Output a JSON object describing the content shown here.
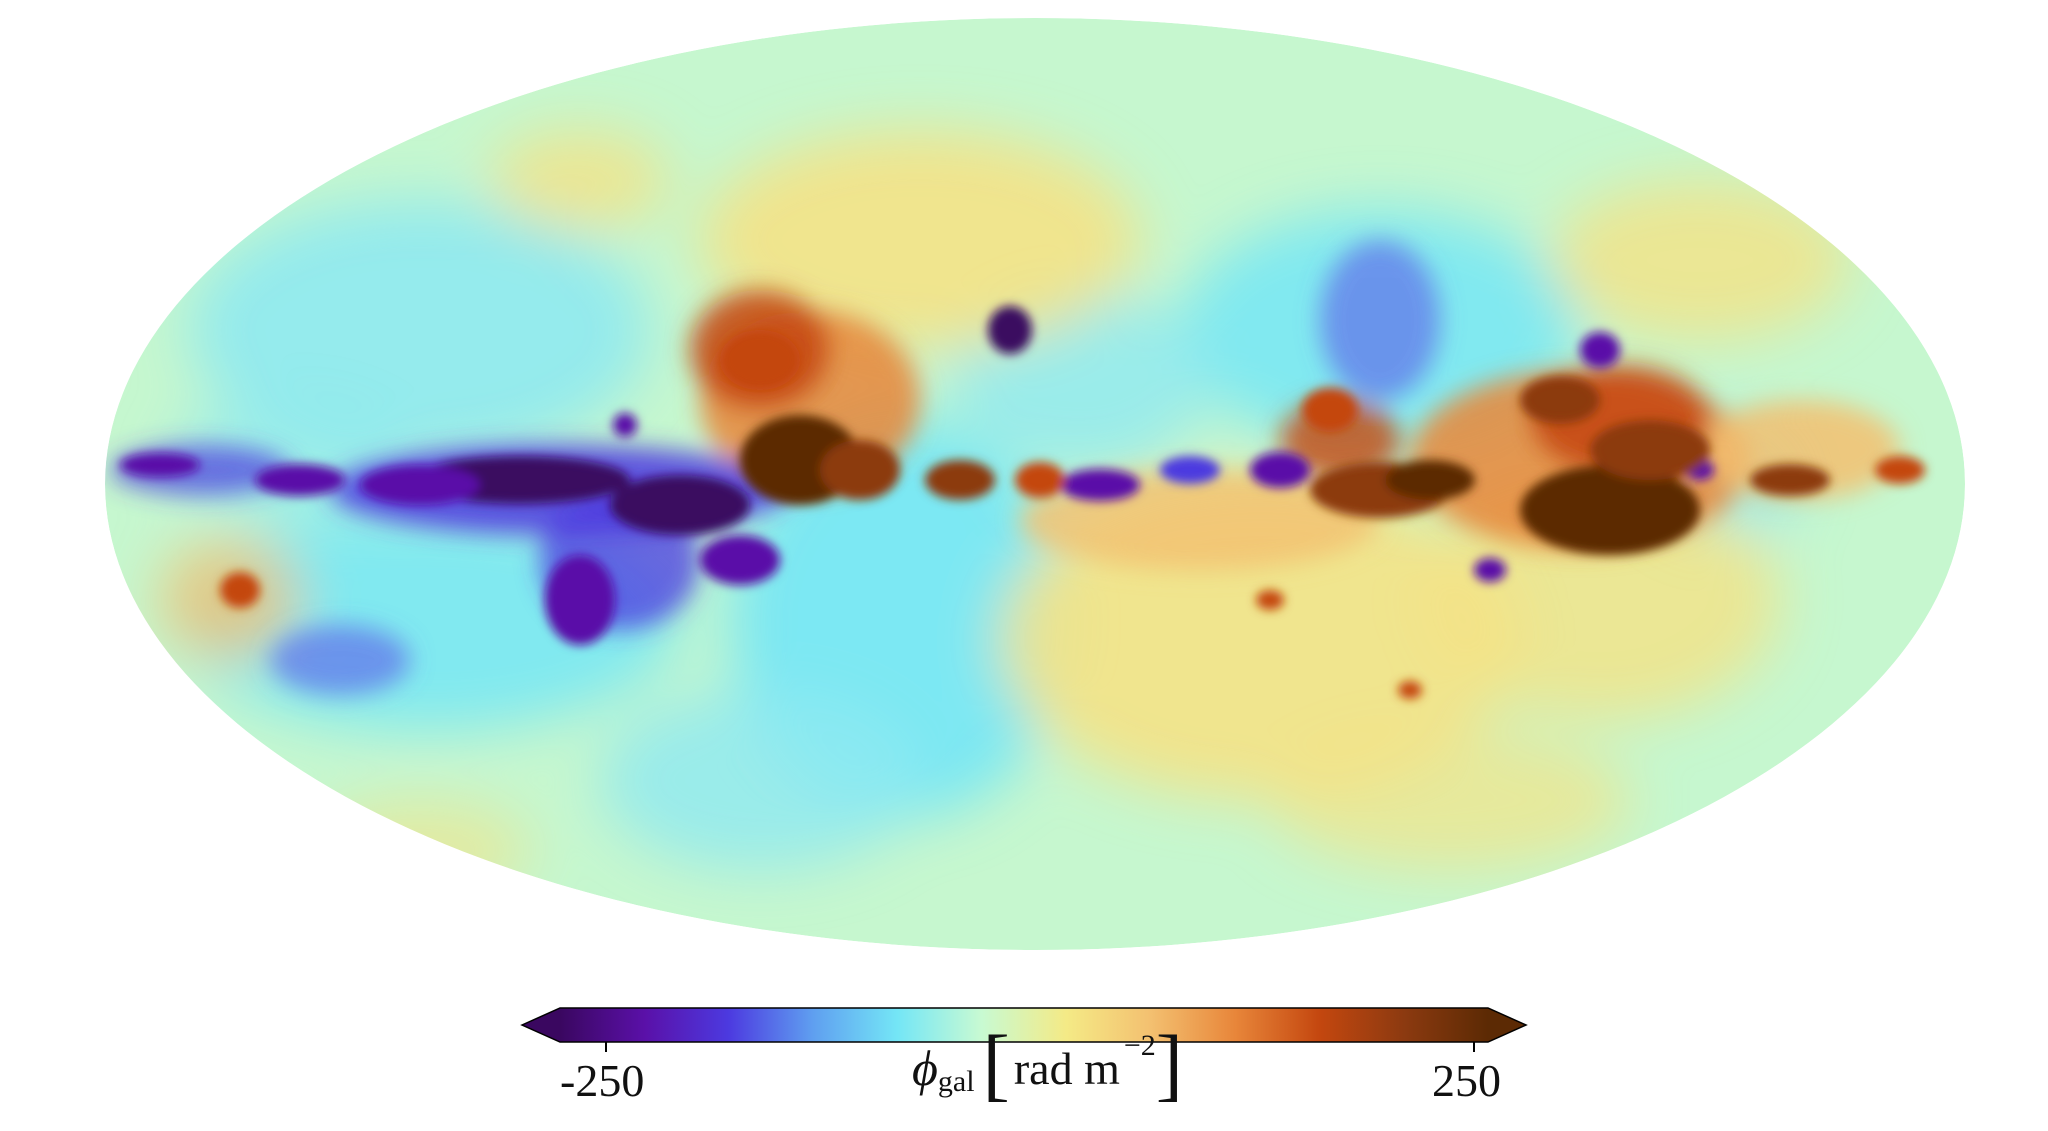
{
  "map": {
    "projection": "mollweide",
    "description_role": "full-sky map of Galactic Faraday rotation",
    "colormap_stops": [
      "#3a0760",
      "#5a10a8",
      "#4c3ae0",
      "#5f9ff0",
      "#74e6f6",
      "#c8fad2",
      "#f4ea86",
      "#f3c070",
      "#e8863a",
      "#c4470f",
      "#8c3a10",
      "#5c2a04"
    ],
    "background_color": "#ffffff",
    "ocean_color": "#c6f7cf"
  },
  "colorbar": {
    "min": -250,
    "max": 250,
    "tick_min_label": "-250",
    "tick_max_label": "250",
    "extend": "both",
    "label_symbol": "ϕ",
    "label_subscript": "gal",
    "label_bracket_open": "[",
    "label_unit": "rad m",
    "label_superscript": "−2",
    "label_bracket_close": "]"
  }
}
